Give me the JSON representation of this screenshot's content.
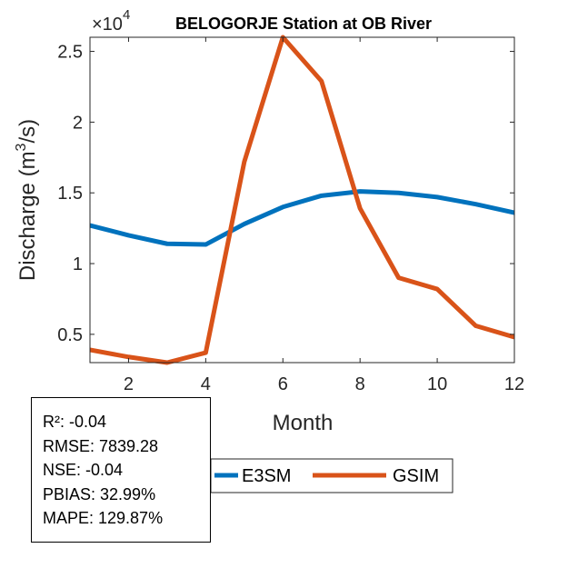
{
  "chart_data": {
    "type": "line",
    "title": "BELOGORJE  Station at  OB  River",
    "xlabel": "Month",
    "ylabel_main": "Discharge (m",
    "ylabel_sup": "3",
    "ylabel_tail": "/s)",
    "y_multiplier_base": "×10",
    "y_multiplier_exp": "4",
    "xlim": [
      1,
      12
    ],
    "ylim": [
      3000,
      26000
    ],
    "x_ticks": [
      2,
      4,
      6,
      8,
      10,
      12
    ],
    "y_ticks": [
      5000,
      10000,
      15000,
      20000,
      25000
    ],
    "y_tick_labels": [
      "0.5",
      "1",
      "1.5",
      "2",
      "2.5"
    ],
    "x": [
      1,
      2,
      3,
      4,
      5,
      6,
      7,
      8,
      9,
      10,
      11,
      12
    ],
    "series": [
      {
        "name": "E3SM",
        "color": "#0072BD",
        "values": [
          12700,
          12000,
          11400,
          11350,
          12800,
          14000,
          14800,
          15100,
          15000,
          14700,
          14200,
          13600
        ]
      },
      {
        "name": "GSIM",
        "color": "#D95319",
        "values": [
          3900,
          3400,
          3000,
          3700,
          17200,
          26000,
          22900,
          13900,
          9000,
          8200,
          5600,
          4800
        ]
      }
    ],
    "legend_position": "bottom-center",
    "grid": false
  },
  "stats": {
    "r2": "R²: -0.04",
    "rmse": "RMSE: 7839.28",
    "nse": "NSE: -0.04",
    "pbias": "PBIAS: 32.99%",
    "mape": "MAPE: 129.87%"
  }
}
